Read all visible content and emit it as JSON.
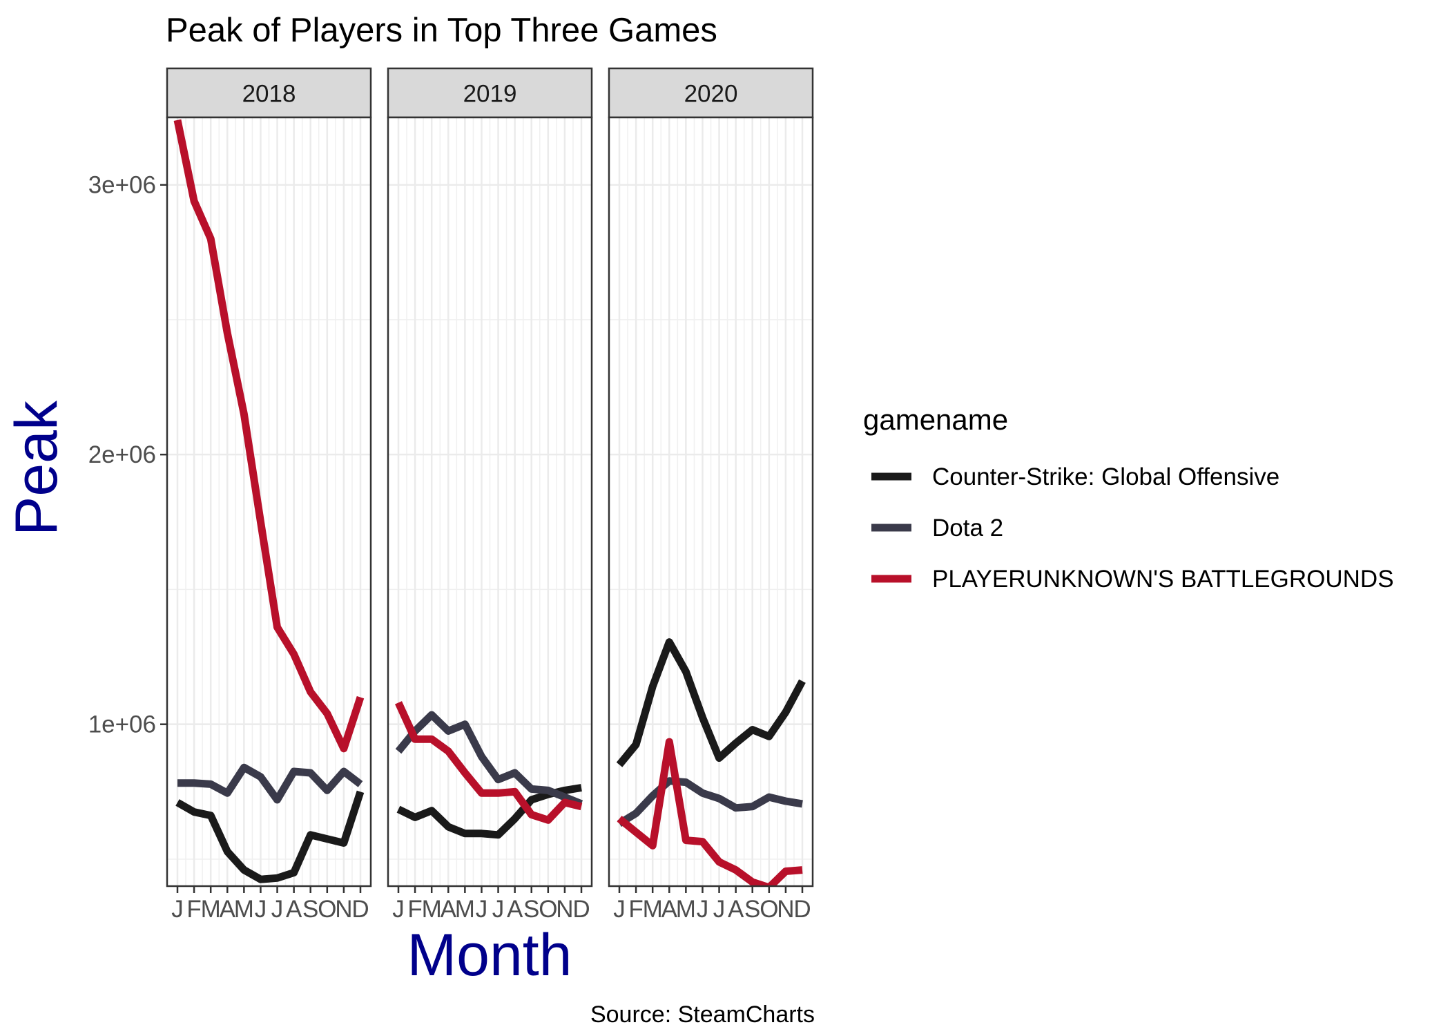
{
  "chart_data": {
    "type": "line",
    "title": "Peak of Players in Top Three Games",
    "xlabel": "Month",
    "ylabel": "Peak",
    "caption": "Source: SteamCharts",
    "legend_title": "gamename",
    "legend_position": "right",
    "grid": true,
    "ylim": [
      400000,
      3250000
    ],
    "y_ticks": [
      1000000,
      2000000,
      3000000
    ],
    "y_tick_labels": [
      "1e+06",
      "2e+06",
      "3e+06"
    ],
    "x_tick_labels": [
      "J",
      "F",
      "M",
      "A",
      "M",
      "J",
      "J",
      "A",
      "S",
      "O",
      "N",
      "D"
    ],
    "facets": [
      "2018",
      "2019",
      "2020"
    ],
    "colors": {
      "Counter-Strike: Global Offensive": "#1a1a1a",
      "Dota 2": "#3a3a4a",
      "PLAYERUNKNOWN'S BATTLEGROUNDS": "#b8102a"
    },
    "series": [
      {
        "name": "Counter-Strike: Global Offensive",
        "values": {
          "2018": [
            710000,
            675000,
            662000,
            528000,
            460000,
            425000,
            430000,
            450000,
            590000,
            575000,
            560000,
            750000
          ],
          "2019": [
            685000,
            655000,
            680000,
            620000,
            595000,
            595000,
            590000,
            650000,
            720000,
            740000,
            755000,
            765000
          ],
          "2020": [
            850000,
            925000,
            1140000,
            1305000,
            1195000,
            1025000,
            875000,
            930000,
            980000,
            955000,
            1045000,
            1160000
          ]
        }
      },
      {
        "name": "Dota 2",
        "values": {
          "2018": [
            782000,
            782000,
            778000,
            745000,
            840000,
            805000,
            720000,
            825000,
            820000,
            755000,
            825000,
            778000
          ],
          "2019": [
            900000,
            975000,
            1035000,
            975000,
            1000000,
            880000,
            795000,
            820000,
            760000,
            755000,
            730000,
            705000
          ],
          "2020": [
            632000,
            670000,
            735000,
            790000,
            785000,
            745000,
            725000,
            690000,
            695000,
            730000,
            715000,
            705000
          ]
        }
      },
      {
        "name": "PLAYERUNKNOWN'S BATTLEGROUNDS",
        "values": {
          "2018": [
            3240000,
            2940000,
            2800000,
            2450000,
            2150000,
            1750000,
            1360000,
            1260000,
            1120000,
            1040000,
            910000,
            1100000
          ],
          "2019": [
            1080000,
            945000,
            945000,
            900000,
            820000,
            745000,
            745000,
            750000,
            665000,
            645000,
            710000,
            695000
          ],
          "2020": [
            650000,
            600000,
            550000,
            935000,
            570000,
            565000,
            490000,
            460000,
            415000,
            395000,
            455000,
            460000
          ]
        }
      }
    ]
  }
}
